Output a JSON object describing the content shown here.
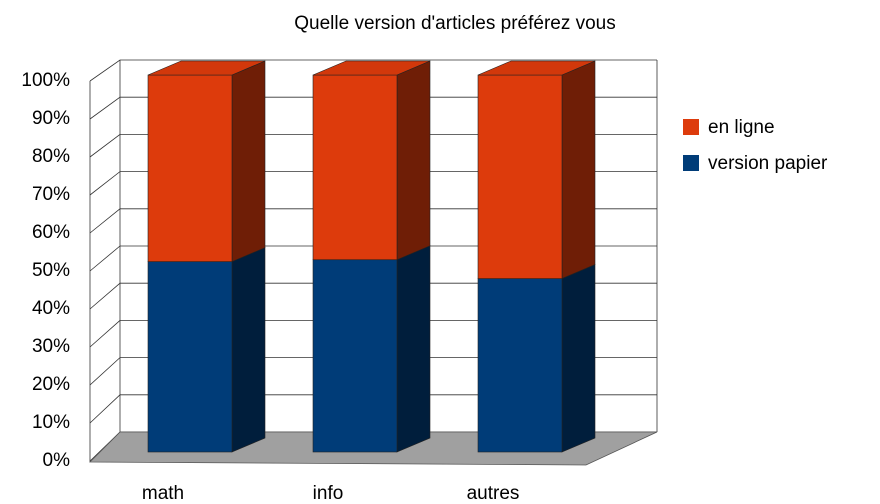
{
  "chart_data": {
    "type": "bar3d_stacked",
    "title": "Quelle version d'articles préférez vous",
    "categories": [
      "math",
      "info",
      "autres"
    ],
    "series": [
      {
        "name": "version papier",
        "color": "#003c78",
        "values": [
          50.5,
          51,
          46
        ]
      },
      {
        "name": "en ligne",
        "color": "#dd3b0c",
        "values": [
          49.5,
          49,
          54
        ]
      }
    ],
    "ylim": [
      0,
      100
    ],
    "yticks": [
      {
        "value": 0,
        "label": "0%"
      },
      {
        "value": 10,
        "label": "10%"
      },
      {
        "value": 20,
        "label": "20%"
      },
      {
        "value": 30,
        "label": "30%"
      },
      {
        "value": 40,
        "label": "40%"
      },
      {
        "value": 50,
        "label": "50%"
      },
      {
        "value": 60,
        "label": "60%"
      },
      {
        "value": 70,
        "label": "70%"
      },
      {
        "value": 80,
        "label": "80%"
      },
      {
        "value": 90,
        "label": "90%"
      },
      {
        "value": 100,
        "label": "100%"
      }
    ],
    "grid": true
  }
}
